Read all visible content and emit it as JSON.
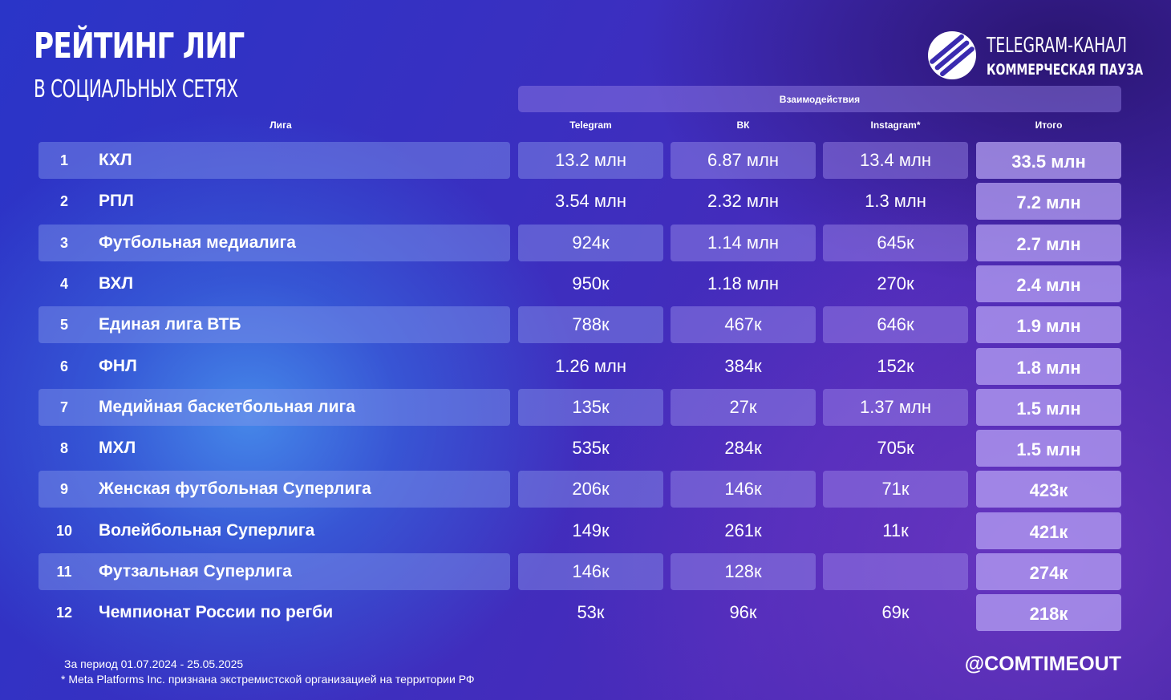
{
  "title": "РЕЙТИНГ ЛИГ",
  "subtitle": "В СОЦИАЛЬНЫХ СЕТЯХ",
  "brand": {
    "line1": "TELEGRAM-КАНАЛ",
    "line2": "КОММЕРЧЕСКАЯ ПАУЗА",
    "logo_icon": "stripes-ball-logo"
  },
  "table": {
    "group_header": "Взаимодействия",
    "columns": {
      "league": "Лига",
      "telegram": "Telegram",
      "vk": "ВК",
      "instagram": "Instagram*",
      "total": "Итого"
    },
    "rows": [
      {
        "rank": "1",
        "league": "КХЛ",
        "telegram": "13.2 млн",
        "vk": "6.87 млн",
        "instagram": "13.4 млн",
        "total": "33.5 млн"
      },
      {
        "rank": "2",
        "league": "РПЛ",
        "telegram": "3.54 млн",
        "vk": "2.32 млн",
        "instagram": "1.3 млн",
        "total": "7.2 млн"
      },
      {
        "rank": "3",
        "league": "Футбольная медиалига",
        "telegram": "924к",
        "vk": "1.14 млн",
        "instagram": "645к",
        "total": "2.7 млн"
      },
      {
        "rank": "4",
        "league": "ВХЛ",
        "telegram": "950к",
        "vk": "1.18 млн",
        "instagram": "270к",
        "total": "2.4 млн"
      },
      {
        "rank": "5",
        "league": "Единая лига ВТБ",
        "telegram": "788к",
        "vk": "467к",
        "instagram": "646к",
        "total": "1.9 млн"
      },
      {
        "rank": "6",
        "league": "ФНЛ",
        "telegram": "1.26 млн",
        "vk": "384к",
        "instagram": "152к",
        "total": "1.8 млн"
      },
      {
        "rank": "7",
        "league": "Медийная баскетбольная лига",
        "telegram": "135к",
        "vk": "27к",
        "instagram": "1.37 млн",
        "total": "1.5 млн"
      },
      {
        "rank": "8",
        "league": "МХЛ",
        "telegram": "535к",
        "vk": "284к",
        "instagram": "705к",
        "total": "1.5 млн"
      },
      {
        "rank": "9",
        "league": "Женская футбольная Суперлига",
        "telegram": "206к",
        "vk": "146к",
        "instagram": "71к",
        "total": "423к"
      },
      {
        "rank": "10",
        "league": "Волейбольная Суперлига",
        "telegram": "149к",
        "vk": "261к",
        "instagram": "11к",
        "total": "421к"
      },
      {
        "rank": "11",
        "league": "Футзальная Суперлига",
        "telegram": "146к",
        "vk": "128к",
        "instagram": "",
        "total": "274к"
      },
      {
        "rank": "12",
        "league": "Чемпионат России по регби",
        "telegram": "53к",
        "vk": "96к",
        "instagram": "69к",
        "total": "218к"
      }
    ]
  },
  "footnotes": {
    "period": "За период 01.07.2024 - 25.05.2025",
    "meta": "* Meta Platforms Inc. признана экстремистской организацией на территории РФ"
  },
  "handle": "@COMTIMEOUT"
}
